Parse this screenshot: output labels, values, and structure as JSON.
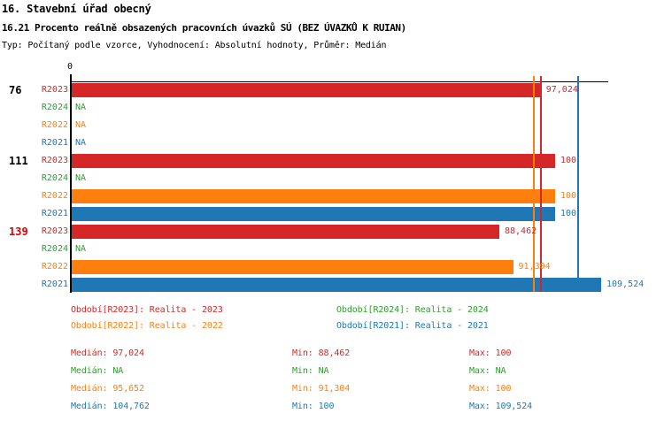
{
  "header": {
    "title_line1": "16. Stavební úřad obecný",
    "title_line2": "16.21 Procento reálně obsazených pracovních úvazků SÚ (BEZ ÚVAZKŮ K RUIAN)",
    "subtitle": "Typ: Počítaný podle vzorce, Vyhodnocení: Absolutní hodnoty, Průměr: Medián"
  },
  "colors": {
    "R2023": "#d62728",
    "R2024": "#2ca02c",
    "R2022": "#ff7f0e",
    "R2021": "#1f77b4",
    "highlighted_group_label": "#e00000",
    "normal_group_label": "#000000",
    "axis": "#000000"
  },
  "chart_data": {
    "type": "bar",
    "orientation": "horizontal",
    "x_axis": {
      "min": 0,
      "max": 111,
      "zero_label": "0",
      "gridlines": false
    },
    "series_order": [
      "R2023",
      "R2024",
      "R2022",
      "R2021"
    ],
    "groups": [
      {
        "label": "76",
        "highlighted": false,
        "bars": [
          {
            "series": "R2023",
            "value": 97.024,
            "value_label": "97,024"
          },
          {
            "series": "R2024",
            "value": null,
            "value_label": "NA"
          },
          {
            "series": "R2022",
            "value": null,
            "value_label": "NA"
          },
          {
            "series": "R2021",
            "value": null,
            "value_label": "NA"
          }
        ]
      },
      {
        "label": "111",
        "highlighted": false,
        "bars": [
          {
            "series": "R2023",
            "value": 100,
            "value_label": "100"
          },
          {
            "series": "R2024",
            "value": null,
            "value_label": "NA"
          },
          {
            "series": "R2022",
            "value": 100,
            "value_label": "100"
          },
          {
            "series": "R2021",
            "value": 100,
            "value_label": "100"
          }
        ]
      },
      {
        "label": "139",
        "highlighted": true,
        "bars": [
          {
            "series": "R2023",
            "value": 88.462,
            "value_label": "88,462"
          },
          {
            "series": "R2024",
            "value": null,
            "value_label": "NA"
          },
          {
            "series": "R2022",
            "value": 91.304,
            "value_label": "91,304"
          },
          {
            "series": "R2021",
            "value": 109.524,
            "value_label": "109,524"
          }
        ]
      }
    ],
    "median_lines": [
      {
        "series": "R2023",
        "value": 97.024
      },
      {
        "series": "R2022",
        "value": 95.652
      },
      {
        "series": "R2021",
        "value": 104.762
      }
    ]
  },
  "legend": [
    {
      "series": "R2023",
      "text": "Období[R2023]: Realita - 2023",
      "column": 0,
      "row": 0
    },
    {
      "series": "R2024",
      "text": "Období[R2024]: Realita - 2024",
      "column": 1,
      "row": 0
    },
    {
      "series": "R2022",
      "text": "Období[R2022]: Realita - 2022",
      "column": 0,
      "row": 1
    },
    {
      "series": "R2021",
      "text": "Období[R2021]: Realita - 2021",
      "column": 1,
      "row": 1
    }
  ],
  "stats": [
    {
      "series": "R2023",
      "median": "Medián: 97,024",
      "min": "Min: 88,462",
      "max": "Max: 100"
    },
    {
      "series": "R2024",
      "median": "Medián: NA",
      "min": "Min: NA",
      "max": "Max: NA"
    },
    {
      "series": "R2022",
      "median": "Medián: 95,652",
      "min": "Min: 91,304",
      "max": "Max: 100"
    },
    {
      "series": "R2021",
      "median": "Medián: 104,762",
      "min": "Min: 100",
      "max": "Max: 109,524"
    }
  ]
}
